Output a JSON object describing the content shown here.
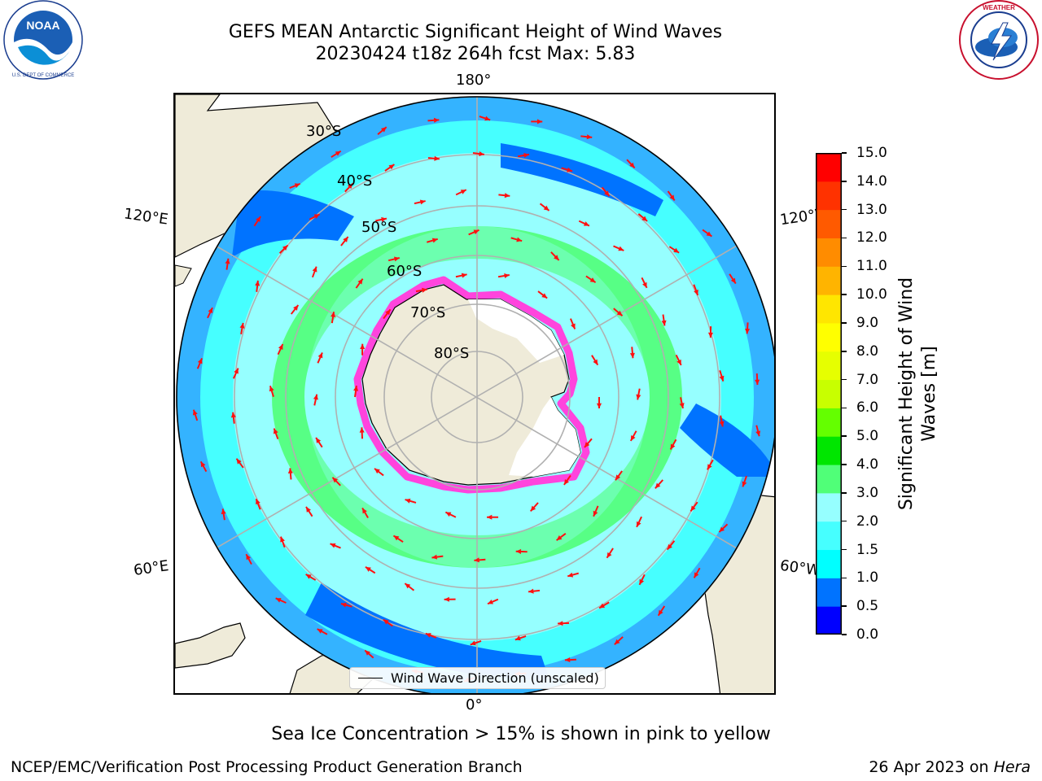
{
  "header": {
    "title_line1": "GEFS MEAN Antarctic Significant Height of Wind Waves",
    "title_line2": "20230424 t18z 264h fcst   Max: 5.83"
  },
  "logos": {
    "left": "NOAA",
    "right": "NATIONAL WEATHER SERVICE"
  },
  "map": {
    "projection": "south-polar-stereographic",
    "longitude_labels": {
      "top": "180°",
      "bottom": "0°",
      "left_upper": "120°E",
      "left_lower": "60°E",
      "right_upper": "120°W",
      "right_lower": "60°W"
    },
    "latitude_labels": [
      "30°S",
      "40°S",
      "50°S",
      "60°S",
      "70°S",
      "80°S"
    ],
    "legend": "Wind Wave Direction (unscaled)",
    "colors": {
      "land": "#efebd9",
      "ice_pink": "#ff44dd",
      "arrow": "#ff1010",
      "grid": "#b0b0b0"
    }
  },
  "colorbar": {
    "label": "Significant Height of Wind Waves [m]",
    "ticks": [
      "0.0",
      "0.5",
      "1.0",
      "1.5",
      "2.0",
      "3.0",
      "4.0",
      "5.0",
      "6.0",
      "7.0",
      "8.0",
      "9.0",
      "10.0",
      "11.0",
      "12.0",
      "13.0",
      "14.0",
      "15.0"
    ],
    "colors": [
      "#0000ff",
      "#0073ff",
      "#00ffff",
      "#46ffff",
      "#96ffff",
      "#50ff78",
      "#00e600",
      "#64ff00",
      "#c8ff00",
      "#e6ff00",
      "#ffff00",
      "#ffe600",
      "#ffb400",
      "#ff8c00",
      "#ff5a00",
      "#ff3200",
      "#ff0000"
    ]
  },
  "footer": {
    "note": "Sea Ice Concentration > 15% is shown in pink to yellow",
    "left": "NCEP/EMC/Verification Post Processing Product Generation Branch",
    "date": "26 Apr 2023 on ",
    "machine": "Hera"
  }
}
